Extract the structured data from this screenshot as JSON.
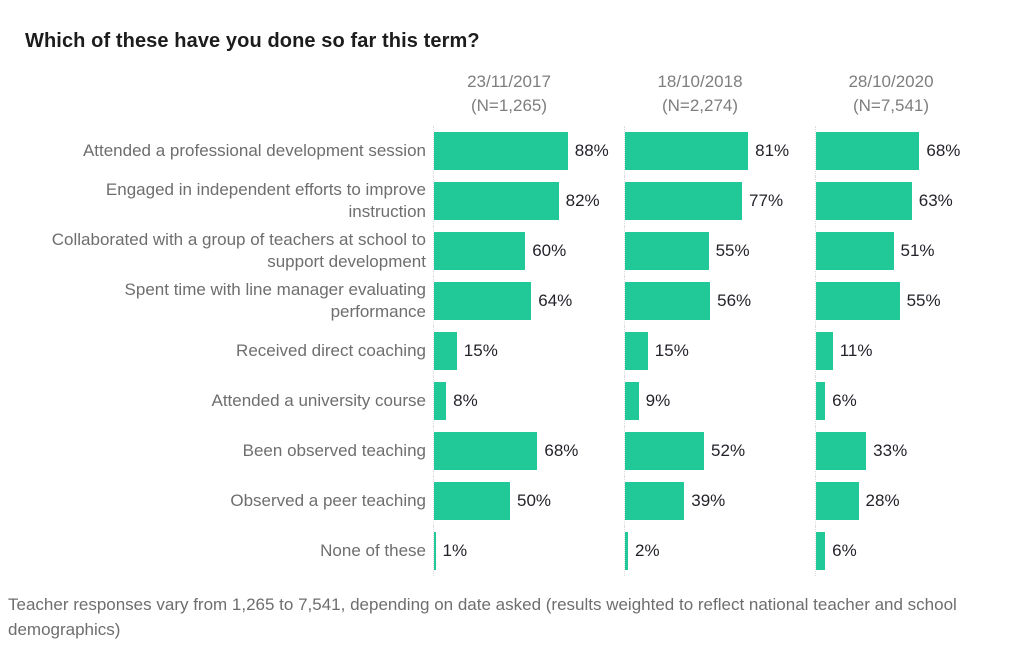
{
  "title": "Which of these have you done so far this term?",
  "footnote": "Teacher responses vary from  1,265 to 7,541, depending on date asked (results weighted to reflect national teacher and school demographics)",
  "colors": {
    "bar": "#20c997",
    "title_text": "#1c1c1c",
    "label_text": "#6e6e6e",
    "header_text": "#7e7e7e",
    "value_text": "#23232b",
    "axis_line": "#dcdcdc"
  },
  "chart_data": {
    "type": "bar",
    "orientation": "horizontal",
    "title": "Which of these have you done so far this term?",
    "xlabel": "",
    "ylabel": "",
    "xlim": [
      0,
      100
    ],
    "grid": false,
    "value_suffix": "%",
    "value_labels": "outside-end",
    "legend_position": "column-headers-top",
    "categories": [
      "Attended a professional development session",
      "Engaged in independent efforts to improve instruction",
      "Collaborated with a group of teachers at school to support development",
      "Spent time with line manager evaluating performance",
      "Received direct coaching",
      "Attended a university course",
      "Been observed teaching",
      "Observed a peer teaching",
      "None of these"
    ],
    "series": [
      {
        "name": "23/11/2017",
        "n_label": "(N=1,265)",
        "values": [
          88,
          82,
          60,
          64,
          15,
          8,
          68,
          50,
          1
        ]
      },
      {
        "name": "18/10/2018",
        "n_label": "(N=2,274)",
        "values": [
          81,
          77,
          55,
          56,
          15,
          9,
          52,
          39,
          2
        ]
      },
      {
        "name": "28/10/2020",
        "n_label": "(N=7,541)",
        "values": [
          68,
          63,
          51,
          55,
          11,
          6,
          33,
          28,
          6
        ]
      }
    ]
  }
}
